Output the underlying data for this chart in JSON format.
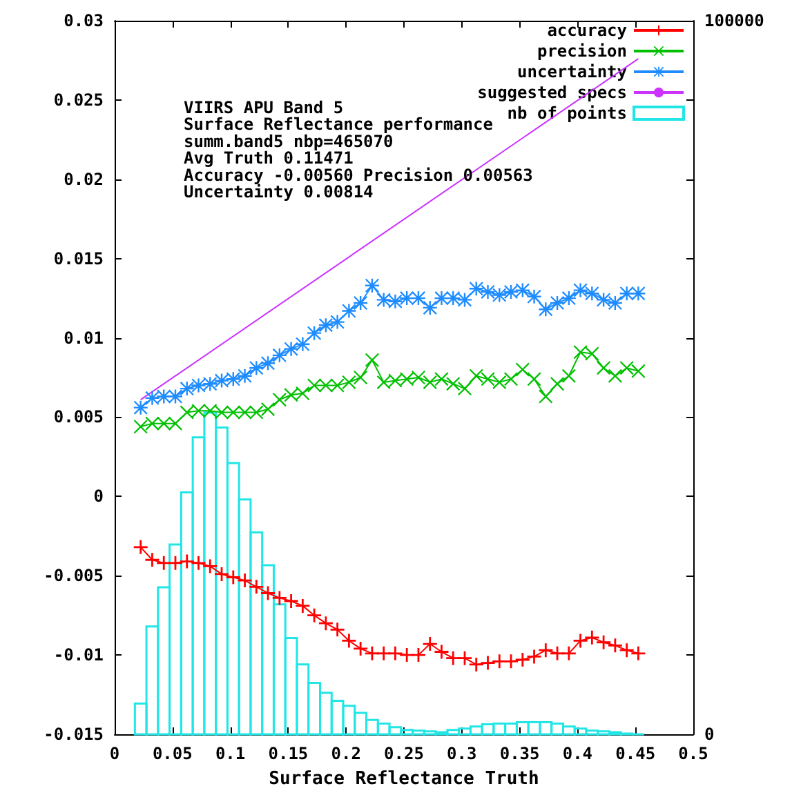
{
  "chart_data": {
    "type": "line",
    "xlabel": "Surface Reflectance Truth",
    "annotations": [
      "VIIRS APU Band 5",
      "Surface Reflectance performance",
      "summ.band5 nbp=465070",
      "Avg Truth 0.11471",
      "Accuracy -0.00560 Precision 0.00563",
      "Uncertainty 0.00814"
    ],
    "x": [
      0.0225,
      0.0325,
      0.0425,
      0.0525,
      0.0625,
      0.0725,
      0.0825,
      0.0925,
      0.1025,
      0.1125,
      0.1225,
      0.1325,
      0.1425,
      0.1525,
      0.1625,
      0.1725,
      0.1825,
      0.1925,
      0.2025,
      0.2125,
      0.2225,
      0.2325,
      0.2425,
      0.2525,
      0.2625,
      0.2725,
      0.2825,
      0.2925,
      0.3025,
      0.3125,
      0.3225,
      0.3325,
      0.3425,
      0.3525,
      0.3625,
      0.3725,
      0.3825,
      0.3925,
      0.4025,
      0.4125,
      0.4225,
      0.4325,
      0.4425,
      0.4525
    ],
    "xlim": [
      0,
      0.5
    ],
    "xticks": [
      0,
      0.05,
      0.1,
      0.15,
      0.2,
      0.25,
      0.3,
      0.35,
      0.4,
      0.45,
      0.5
    ],
    "ylim": [
      -0.015,
      0.03
    ],
    "yticks": [
      -0.015,
      -0.01,
      -0.005,
      0,
      0.005,
      0.01,
      0.015,
      0.02,
      0.025,
      0.03
    ],
    "y2lim": [
      0,
      100000
    ],
    "y2ticks": [
      0,
      {
        "value": 11111,
        "label": null
      },
      {
        "value": 22222,
        "label": null
      },
      {
        "value": 33333,
        "label": null
      },
      {
        "value": 44444,
        "label": null
      },
      {
        "value": 55556,
        "label": null
      },
      {
        "value": 66667,
        "label": null
      },
      {
        "value": 77778,
        "label": null
      },
      {
        "value": 88889,
        "label": null
      },
      100000
    ],
    "legend": "top right",
    "series": [
      {
        "name": "accuracy",
        "color": "#ff0000",
        "marker": "cross",
        "values": [
          -0.0032,
          -0.004,
          -0.0042,
          -0.0042,
          -0.0041,
          -0.0042,
          -0.0044,
          -0.0049,
          -0.0051,
          -0.0053,
          -0.0057,
          -0.0061,
          -0.0064,
          -0.0066,
          -0.0069,
          -0.0075,
          -0.008,
          -0.0084,
          -0.0091,
          -0.0096,
          -0.0099,
          -0.0099,
          -0.0099,
          -0.01,
          -0.01,
          -0.0093,
          -0.0098,
          -0.0102,
          -0.0102,
          -0.0106,
          -0.0105,
          -0.0104,
          -0.0104,
          -0.0103,
          -0.0101,
          -0.0097,
          -0.0099,
          -0.0099,
          -0.0091,
          -0.0089,
          -0.0092,
          -0.0094,
          -0.0097,
          -0.0099
        ]
      },
      {
        "name": "precision",
        "color": "#00c000",
        "marker": "x",
        "values": [
          0.0044,
          0.0046,
          0.0046,
          0.0046,
          0.0053,
          0.0054,
          0.0054,
          0.0053,
          0.0053,
          0.0053,
          0.0053,
          0.0055,
          0.0061,
          0.0064,
          0.0065,
          0.007,
          0.007,
          0.007,
          0.0072,
          0.0075,
          0.0086,
          0.0072,
          0.0073,
          0.0074,
          0.0075,
          0.0072,
          0.0074,
          0.0071,
          0.0068,
          0.0076,
          0.0074,
          0.0072,
          0.0074,
          0.008,
          0.0074,
          0.0063,
          0.0071,
          0.0076,
          0.0091,
          0.009,
          0.0081,
          0.0076,
          0.0081,
          0.0079
        ]
      },
      {
        "name": "uncertainty",
        "color": "#1e8cff",
        "marker": "star",
        "values": [
          0.0056,
          0.0062,
          0.0063,
          0.0063,
          0.0068,
          0.007,
          0.0071,
          0.0073,
          0.0074,
          0.0076,
          0.0081,
          0.0084,
          0.0089,
          0.0093,
          0.0096,
          0.0103,
          0.0108,
          0.011,
          0.0117,
          0.0122,
          0.0133,
          0.0124,
          0.0123,
          0.0125,
          0.0125,
          0.0119,
          0.0125,
          0.0125,
          0.0124,
          0.0131,
          0.0129,
          0.0127,
          0.0129,
          0.013,
          0.0126,
          0.0118,
          0.0122,
          0.0125,
          0.013,
          0.0128,
          0.0124,
          0.0122,
          0.0128,
          0.0128
        ]
      },
      {
        "name": "suggested specs",
        "color": "#cc33ff",
        "marker": "none",
        "x": [
          0.0225,
          0.4525
        ],
        "values": [
          0.0061,
          0.0276
        ]
      },
      {
        "name": "nb of points",
        "type": "histogram",
        "axis": "y2",
        "color": "#22e6e6",
        "bins": [
          0.0175,
          0.0275,
          0.0375,
          0.0475,
          0.0575,
          0.0675,
          0.0775,
          0.0875,
          0.0975,
          0.1075,
          0.1175,
          0.1275,
          0.1375,
          0.1475,
          0.1575,
          0.1675,
          0.1775,
          0.1875,
          0.1975,
          0.2075,
          0.2175,
          0.2275,
          0.2375,
          0.2475,
          0.2575,
          0.2675,
          0.2775,
          0.2875,
          0.2975,
          0.3075,
          0.3175,
          0.3275,
          0.3375,
          0.3475,
          0.3575,
          0.3675,
          0.3775,
          0.3875,
          0.3975,
          0.4075,
          0.4175,
          0.4275,
          0.4375,
          0.4475,
          0.4575
        ],
        "values": [
          4300,
          15100,
          20600,
          26600,
          33900,
          41600,
          45100,
          43000,
          38000,
          32900,
          28300,
          23700,
          18200,
          13500,
          9800,
          7200,
          5800,
          4700,
          4000,
          3000,
          2000,
          1500,
          1000,
          600,
          500,
          400,
          300,
          600,
          800,
          1100,
          1400,
          1500,
          1500,
          1700,
          1700,
          1700,
          1500,
          1100,
          800,
          500,
          400,
          300,
          100,
          0
        ]
      }
    ]
  }
}
